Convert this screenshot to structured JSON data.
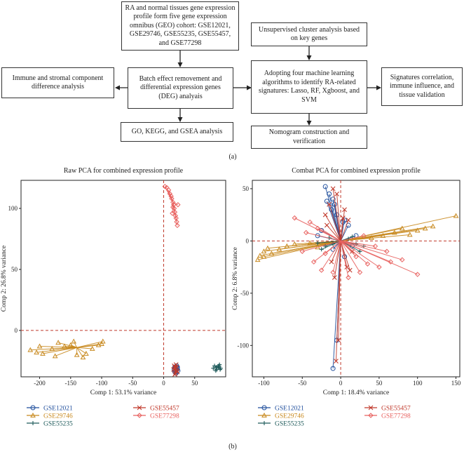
{
  "flowchart": {
    "geo_box": "RA and normal tissues gene expression profile form five gene expression omnibus (GEO) cohort: GSE12021, GSE29746, GSE55235, GSE55457, and GSE77298",
    "batch_box": "Batch effect removement and differential expression genes (DEG) analyais",
    "immune_box": "Immune and stromal component difference analysis",
    "go_box": "GO, KEGG, and GSEA analysis",
    "cluster_box": "Unsupervised cluster analysis based on key genes",
    "ml_box": "Adopting four machine learning algorithms to identify RA-related signatures: Lasso, RF, Xgboost, and SVM",
    "signature_box": "Signatures correlation, immune influence, and tissue validation",
    "nomogram_box": "Nomogram construction and verification",
    "panel_label": "(a)"
  },
  "panel_b_label": "(b)",
  "legend": [
    {
      "name": "GSE12021",
      "color": "#1f4e9c",
      "marker": "circle"
    },
    {
      "name": "GSE29746",
      "color": "#c8891e",
      "marker": "triangle"
    },
    {
      "name": "GSE55235",
      "color": "#1e5a5a",
      "marker": "plus"
    },
    {
      "name": "GSE55457",
      "color": "#c0392b",
      "marker": "x"
    },
    {
      "name": "GSE77298",
      "color": "#e8615f",
      "marker": "diamond"
    }
  ],
  "chart_data": [
    {
      "type": "scatter",
      "title": "Raw PCA for combined expression profile",
      "xlabel": "Comp 1: 53.1% variance",
      "ylabel": "Comp 2: 26.8% variance",
      "xlim": [
        -230,
        100
      ],
      "ylim": [
        -38,
        123
      ],
      "xticks": [
        -200,
        -150,
        -100,
        -50,
        0,
        50
      ],
      "yticks": [
        0,
        50,
        100
      ],
      "series": [
        {
          "name": "GSE12021",
          "centroid": [
            20,
            -32
          ],
          "points": [
            [
              18,
              -30
            ],
            [
              20,
              -34
            ],
            [
              22,
              -31
            ],
            [
              19,
              -33
            ],
            [
              21,
              -29
            ],
            [
              23,
              -33
            ],
            [
              17,
              -32
            ],
            [
              20,
              -35
            ],
            [
              22,
              -30
            ],
            [
              18,
              -34
            ],
            [
              21,
              -32
            ],
            [
              19,
              -31
            ]
          ]
        },
        {
          "name": "GSE29746",
          "centroid": [
            -140,
            -14
          ],
          "points": [
            [
              -215,
              -16
            ],
            [
              -205,
              -18
            ],
            [
              -195,
              -19
            ],
            [
              -180,
              -15
            ],
            [
              -170,
              -10
            ],
            [
              -160,
              -13
            ],
            [
              -150,
              -12
            ],
            [
              -140,
              -20
            ],
            [
              -130,
              -22
            ],
            [
              -125,
              -19
            ],
            [
              -115,
              -15
            ],
            [
              -105,
              -12
            ],
            [
              -100,
              -11
            ],
            [
              -98,
              -9
            ],
            [
              -200,
              -13
            ],
            [
              -175,
              -21
            ],
            [
              -145,
              -9
            ]
          ]
        },
        {
          "name": "GSE55235",
          "centroid": [
            87,
            -30
          ],
          "points": [
            [
              80,
              -31
            ],
            [
              82,
              -29
            ],
            [
              85,
              -32
            ],
            [
              88,
              -30
            ],
            [
              90,
              -28
            ],
            [
              92,
              -31
            ],
            [
              86,
              -30
            ],
            [
              84,
              -33
            ],
            [
              89,
              -29
            ],
            [
              91,
              -32
            ]
          ]
        },
        {
          "name": "GSE55457",
          "centroid": [
            19,
            -31
          ],
          "points": [
            [
              17,
              -29
            ],
            [
              19,
              -35
            ],
            [
              21,
              -30
            ],
            [
              18,
              -36
            ],
            [
              20,
              -28
            ],
            [
              22,
              -34
            ],
            [
              16,
              -32
            ],
            [
              19,
              -31
            ],
            [
              21,
              -33
            ],
            [
              18,
              -30
            ]
          ]
        },
        {
          "name": "GSE77298",
          "centroid": [
            15,
            105
          ],
          "points": [
            [
              2,
              118
            ],
            [
              5,
              117
            ],
            [
              8,
              115
            ],
            [
              10,
              112
            ],
            [
              12,
              110
            ],
            [
              13,
              108
            ],
            [
              15,
              105
            ],
            [
              16,
              103
            ],
            [
              17,
              100
            ],
            [
              18,
              97
            ],
            [
              19,
              94
            ],
            [
              20,
              92
            ],
            [
              21,
              89
            ],
            [
              22,
              86
            ],
            [
              15,
              101
            ],
            [
              14,
              96
            ],
            [
              23,
              103
            ]
          ]
        }
      ]
    },
    {
      "type": "scatter",
      "title": "Combat PCA for combined expression profile",
      "xlabel": "Comp 1: 18.4% variance",
      "ylabel": "Comp 2: 6.8% variance",
      "xlim": [
        -115,
        155
      ],
      "ylim": [
        -130,
        58
      ],
      "xticks": [
        -100,
        -50,
        0,
        50,
        100,
        150
      ],
      "yticks": [
        -100,
        -50,
        0,
        50
      ],
      "series": [
        {
          "name": "GSE12021",
          "centroid": [
            0,
            0
          ],
          "points": [
            [
              -20,
              52
            ],
            [
              -15,
              45
            ],
            [
              -10,
              40
            ],
            [
              -8,
              35
            ],
            [
              -12,
              30
            ],
            [
              -5,
              25
            ],
            [
              5,
              20
            ],
            [
              10,
              15
            ],
            [
              -25,
              10
            ],
            [
              -30,
              5
            ],
            [
              20,
              5
            ],
            [
              15,
              -5
            ],
            [
              -10,
              -8
            ],
            [
              5,
              -15
            ],
            [
              -5,
              -95
            ],
            [
              -10,
              -122
            ],
            [
              3,
              18
            ],
            [
              -18,
              38
            ]
          ]
        },
        {
          "name": "GSE29746",
          "centroid": [
            0,
            0
          ],
          "points": [
            [
              -108,
              -18
            ],
            [
              -105,
              -14
            ],
            [
              -100,
              -10
            ],
            [
              -90,
              -12
            ],
            [
              -80,
              -8
            ],
            [
              -70,
              -5
            ],
            [
              -60,
              -3
            ],
            [
              -40,
              -2
            ],
            [
              -30,
              -6
            ],
            [
              -100,
              -15
            ],
            [
              150,
              24
            ],
            [
              120,
              14
            ],
            [
              110,
              12
            ],
            [
              100,
              10
            ],
            [
              80,
              12
            ],
            [
              70,
              8
            ],
            [
              55,
              5
            ],
            [
              40,
              3
            ],
            [
              -95,
              -7
            ],
            [
              90,
              6
            ]
          ]
        },
        {
          "name": "GSE55235",
          "centroid": [
            0,
            0
          ],
          "points": [
            [
              -30,
              -2
            ],
            [
              -20,
              -5
            ],
            [
              -10,
              -3
            ],
            [
              10,
              2
            ],
            [
              20,
              -3
            ],
            [
              30,
              -5
            ],
            [
              -15,
              3
            ],
            [
              15,
              4
            ],
            [
              -25,
              -8
            ],
            [
              25,
              -10
            ]
          ]
        },
        {
          "name": "GSE55457",
          "centroid": [
            0,
            0
          ],
          "points": [
            [
              -10,
              50
            ],
            [
              -5,
              45
            ],
            [
              -15,
              35
            ],
            [
              5,
              30
            ],
            [
              10,
              20
            ],
            [
              -20,
              25
            ],
            [
              15,
              -10
            ],
            [
              -12,
              -20
            ],
            [
              8,
              -25
            ],
            [
              -8,
              -35
            ],
            [
              12,
              -28
            ],
            [
              -3,
              -95
            ],
            [
              -6,
              -115
            ],
            [
              3,
              22
            ],
            [
              -18,
              15
            ]
          ]
        },
        {
          "name": "GSE77298",
          "centroid": [
            0,
            0
          ],
          "points": [
            [
              -60,
              22
            ],
            [
              -40,
              18
            ],
            [
              -30,
              12
            ],
            [
              -45,
              8
            ],
            [
              -20,
              -12
            ],
            [
              -35,
              -20
            ],
            [
              -25,
              -28
            ],
            [
              20,
              -15
            ],
            [
              35,
              -22
            ],
            [
              50,
              -25
            ],
            [
              65,
              -20
            ],
            [
              80,
              -18
            ],
            [
              100,
              -32
            ],
            [
              30,
              5
            ],
            [
              45,
              -5
            ],
            [
              60,
              -10
            ],
            [
              -10,
              -30
            ],
            [
              10,
              -35
            ],
            [
              -50,
              -10
            ],
            [
              25,
              -30
            ]
          ]
        }
      ]
    }
  ]
}
